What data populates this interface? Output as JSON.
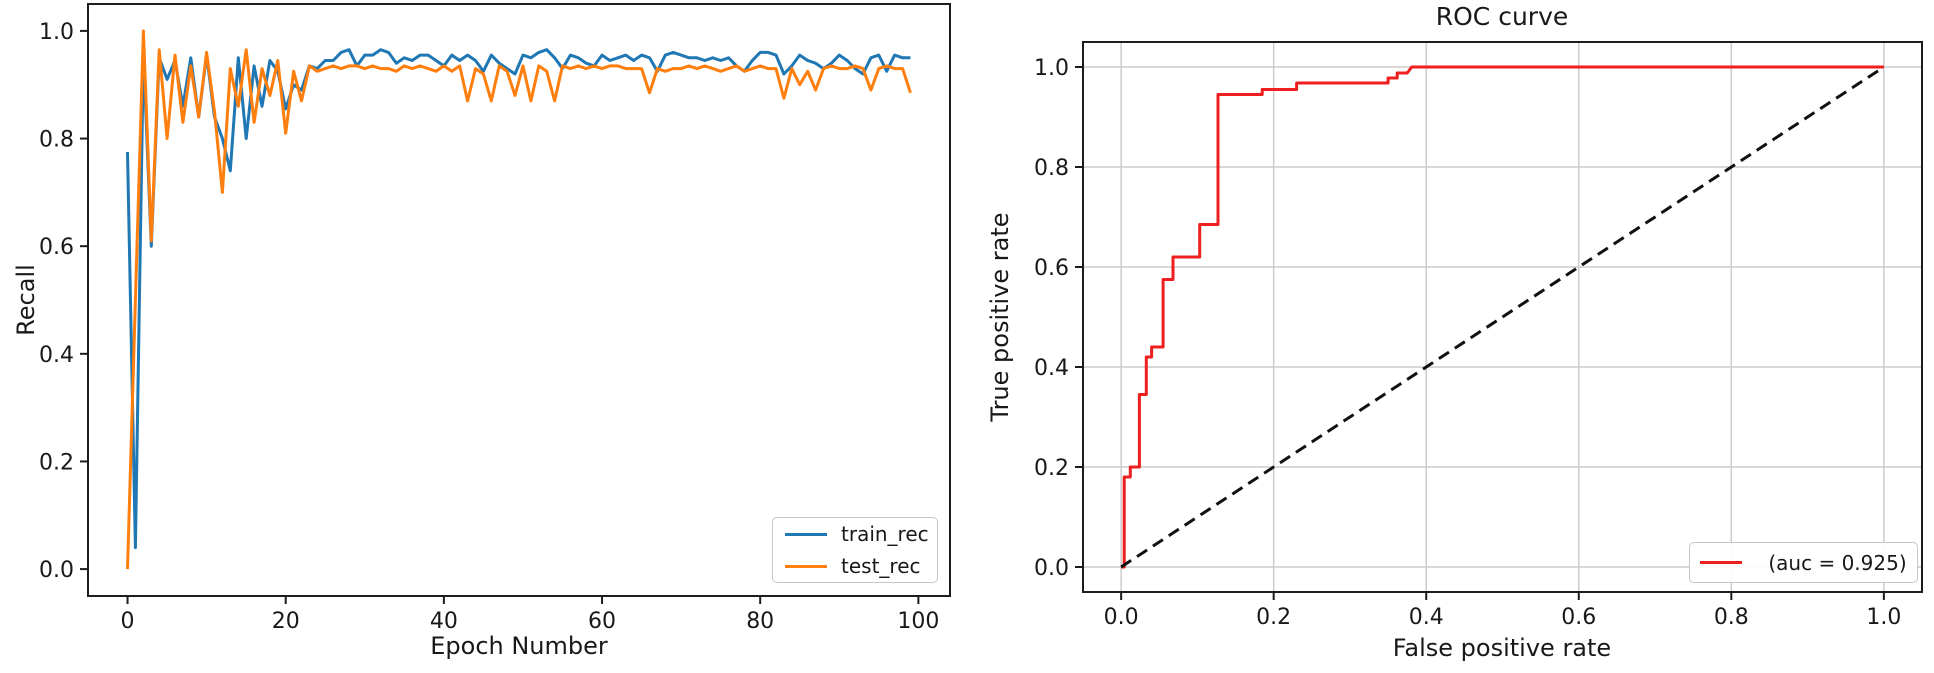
{
  "figure": {
    "background": "#ffffff"
  },
  "colors": {
    "train": "#1f77b4",
    "test": "#ff7f0e",
    "roc": "#ed1f1f",
    "diagonal": "#111111",
    "grid": "#cccccc",
    "spine": "#1d1d1d",
    "text": "#191919"
  },
  "chart_data": [
    {
      "id": "recall-vs-epoch",
      "type": "line",
      "title": "",
      "xlabel": "Epoch Number",
      "ylabel": "Recall",
      "xlim": [
        -5,
        104
      ],
      "ylim": [
        -0.05,
        1.05
      ],
      "grid": false,
      "legend_position": "lower right",
      "xticks": [
        {
          "v": 0,
          "label": "0"
        },
        {
          "v": 20,
          "label": "20"
        },
        {
          "v": 40,
          "label": "40"
        },
        {
          "v": 60,
          "label": "60"
        },
        {
          "v": 80,
          "label": "80"
        },
        {
          "v": 100,
          "label": "100"
        }
      ],
      "yticks": [
        {
          "v": 0.0,
          "label": "0.0"
        },
        {
          "v": 0.2,
          "label": "0.2"
        },
        {
          "v": 0.4,
          "label": "0.4"
        },
        {
          "v": 0.6,
          "label": "0.6"
        },
        {
          "v": 0.8,
          "label": "0.8"
        },
        {
          "v": 1.0,
          "label": "1.0"
        }
      ],
      "x_start": 0,
      "x_step": 1,
      "series": [
        {
          "name": "train_rec",
          "color": "#1f77b4",
          "style": "solid",
          "values": [
            0.775,
            0.04,
            0.96,
            0.6,
            0.95,
            0.91,
            0.945,
            0.86,
            0.95,
            0.84,
            0.955,
            0.84,
            0.8,
            0.74,
            0.95,
            0.8,
            0.935,
            0.86,
            0.945,
            0.925,
            0.855,
            0.9,
            0.89,
            0.935,
            0.93,
            0.945,
            0.945,
            0.96,
            0.965,
            0.935,
            0.955,
            0.955,
            0.965,
            0.96,
            0.94,
            0.95,
            0.945,
            0.955,
            0.955,
            0.945,
            0.935,
            0.955,
            0.945,
            0.955,
            0.945,
            0.925,
            0.955,
            0.94,
            0.93,
            0.92,
            0.955,
            0.95,
            0.96,
            0.965,
            0.95,
            0.93,
            0.955,
            0.95,
            0.94,
            0.935,
            0.955,
            0.945,
            0.95,
            0.955,
            0.945,
            0.955,
            0.95,
            0.925,
            0.955,
            0.96,
            0.955,
            0.95,
            0.95,
            0.945,
            0.95,
            0.945,
            0.95,
            0.935,
            0.925,
            0.945,
            0.96,
            0.96,
            0.955,
            0.92,
            0.935,
            0.955,
            0.945,
            0.94,
            0.93,
            0.94,
            0.955,
            0.945,
            0.93,
            0.92,
            0.95,
            0.955,
            0.925,
            0.955,
            0.95,
            0.95
          ]
        },
        {
          "name": "test_rec",
          "color": "#ff7f0e",
          "style": "solid",
          "values": [
            0.0,
            0.5,
            1.0,
            0.61,
            0.965,
            0.8,
            0.955,
            0.83,
            0.935,
            0.84,
            0.96,
            0.85,
            0.7,
            0.93,
            0.86,
            0.965,
            0.83,
            0.93,
            0.88,
            0.945,
            0.81,
            0.925,
            0.87,
            0.935,
            0.925,
            0.93,
            0.935,
            0.93,
            0.935,
            0.935,
            0.93,
            0.935,
            0.93,
            0.93,
            0.925,
            0.935,
            0.93,
            0.935,
            0.93,
            0.925,
            0.935,
            0.925,
            0.935,
            0.87,
            0.93,
            0.92,
            0.87,
            0.935,
            0.925,
            0.88,
            0.935,
            0.87,
            0.935,
            0.925,
            0.87,
            0.935,
            0.93,
            0.935,
            0.93,
            0.935,
            0.93,
            0.935,
            0.935,
            0.93,
            0.93,
            0.93,
            0.885,
            0.93,
            0.925,
            0.93,
            0.93,
            0.935,
            0.93,
            0.935,
            0.93,
            0.925,
            0.93,
            0.935,
            0.925,
            0.93,
            0.935,
            0.93,
            0.93,
            0.875,
            0.93,
            0.9,
            0.925,
            0.89,
            0.93,
            0.935,
            0.93,
            0.93,
            0.935,
            0.93,
            0.89,
            0.93,
            0.935,
            0.93,
            0.93,
            0.885
          ]
        }
      ],
      "legend": [
        {
          "label": "train_rec",
          "color": "#1f77b4"
        },
        {
          "label": "test_rec",
          "color": "#ff7f0e"
        }
      ]
    },
    {
      "id": "roc-curve",
      "type": "line",
      "title": "ROC curve",
      "xlabel": "False positive rate",
      "ylabel": "True positive rate",
      "xlim": [
        -0.05,
        1.05
      ],
      "ylim": [
        -0.05,
        1.05
      ],
      "grid": true,
      "legend_position": "lower right",
      "auc": 0.925,
      "xticks": [
        {
          "v": 0.0,
          "label": "0.0"
        },
        {
          "v": 0.2,
          "label": "0.2"
        },
        {
          "v": 0.4,
          "label": "0.4"
        },
        {
          "v": 0.6,
          "label": "0.6"
        },
        {
          "v": 0.8,
          "label": "0.8"
        },
        {
          "v": 1.0,
          "label": "1.0"
        }
      ],
      "yticks": [
        {
          "v": 0.0,
          "label": "0.0"
        },
        {
          "v": 0.2,
          "label": "0.2"
        },
        {
          "v": 0.4,
          "label": "0.4"
        },
        {
          "v": 0.6,
          "label": "0.6"
        },
        {
          "v": 0.8,
          "label": "0.8"
        },
        {
          "v": 1.0,
          "label": "1.0"
        }
      ],
      "series": [
        {
          "name": "roc_curve",
          "color": "#ed1f1f",
          "style": "solid",
          "points": [
            [
              0,
              0
            ],
            [
              0.004,
              0
            ],
            [
              0.004,
              0.18
            ],
            [
              0.012,
              0.18
            ],
            [
              0.012,
              0.2
            ],
            [
              0.024,
              0.2
            ],
            [
              0.024,
              0.345
            ],
            [
              0.033,
              0.345
            ],
            [
              0.033,
              0.42
            ],
            [
              0.04,
              0.42
            ],
            [
              0.04,
              0.44
            ],
            [
              0.055,
              0.44
            ],
            [
              0.055,
              0.575
            ],
            [
              0.068,
              0.575
            ],
            [
              0.068,
              0.62
            ],
            [
              0.103,
              0.62
            ],
            [
              0.103,
              0.685
            ],
            [
              0.127,
              0.685
            ],
            [
              0.127,
              0.945
            ],
            [
              0.185,
              0.945
            ],
            [
              0.185,
              0.955
            ],
            [
              0.23,
              0.955
            ],
            [
              0.23,
              0.968
            ],
            [
              0.35,
              0.968
            ],
            [
              0.35,
              0.978
            ],
            [
              0.362,
              0.978
            ],
            [
              0.362,
              0.988
            ],
            [
              0.375,
              0.988
            ],
            [
              0.381,
              1.0
            ],
            [
              1.0,
              1.0
            ]
          ]
        },
        {
          "name": "chance_diagonal",
          "color": "#111111",
          "style": "dashed",
          "points": [
            [
              0,
              0
            ],
            [
              1,
              1
            ]
          ]
        }
      ],
      "legend": [
        {
          "label": "(auc = 0.925)",
          "color": "#ed1f1f"
        }
      ]
    }
  ]
}
